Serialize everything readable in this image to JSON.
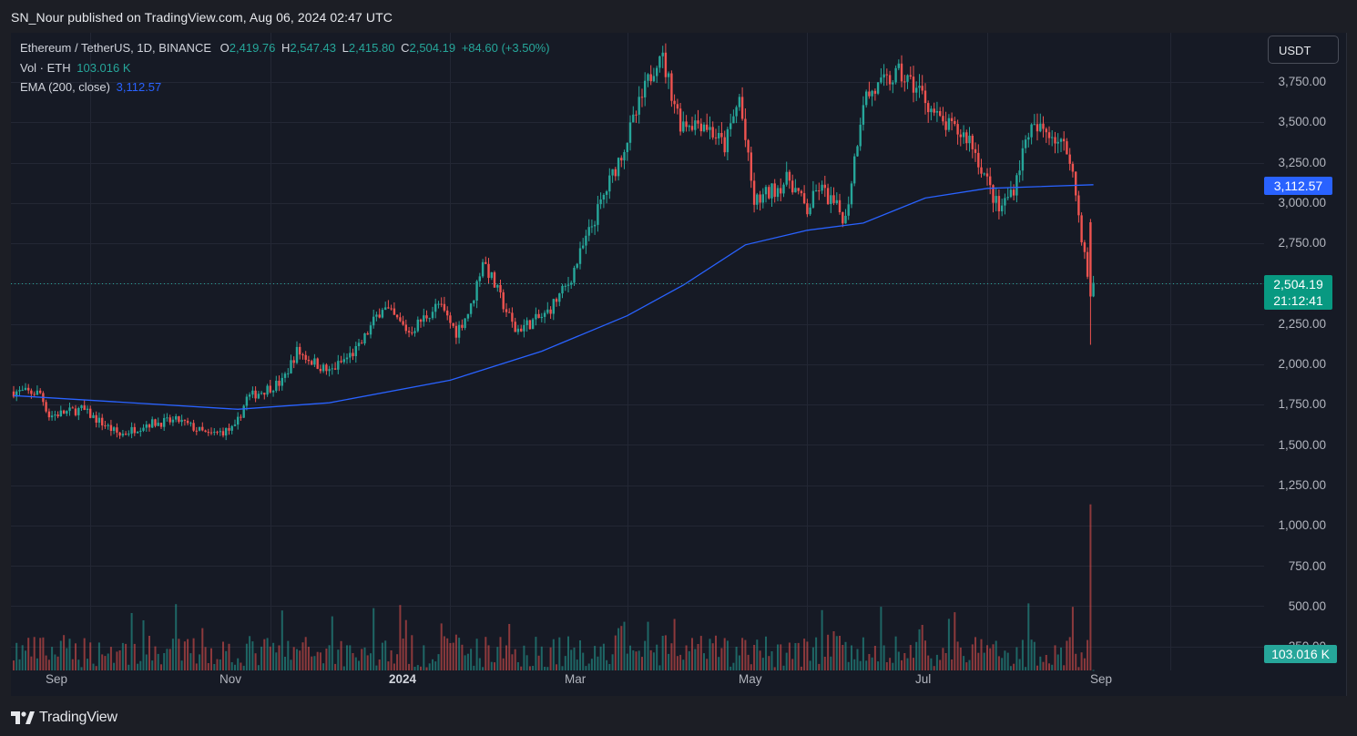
{
  "header": {
    "published_text": "SN_Nour published on TradingView.com, Aug 06, 2024 02:47 UTC"
  },
  "legend": {
    "symbol": "Ethereum / TetherUS, 1D, BINANCE",
    "o_label": "O",
    "o_value": "2,419.76",
    "h_label": "H",
    "h_value": "2,547.43",
    "l_label": "L",
    "l_value": "2,415.80",
    "c_label": "C",
    "c_value": "2,504.19",
    "change": "+84.60 (+3.50%)",
    "vol_label": "Vol · ETH",
    "vol_value": "103.016 K",
    "ema_label": "EMA (200, close)",
    "ema_value": "3,112.57"
  },
  "price_scale": {
    "unit": "USDT",
    "labels": [
      "3,750.00",
      "3,500.00",
      "3,250.00",
      "3,000.00",
      "2,750.00",
      "2,250.00",
      "2,000.00",
      "1,750.00",
      "1,500.00",
      "1,250.00",
      "1,000.00",
      "750.00",
      "500.00",
      "250.00"
    ],
    "ema_badge": "3,112.57",
    "price_badge": "2,504.19",
    "countdown": "21:12:41",
    "volume_badge": "103.016 K"
  },
  "time_scale": {
    "labels": [
      "Sep",
      "Nov",
      "2024",
      "Mar",
      "May",
      "Jul",
      "Sep"
    ]
  },
  "footer": {
    "brand": "TradingView"
  },
  "colors": {
    "up": "#26a69a",
    "down": "#ef5350",
    "ema": "#2962ff",
    "background": "#161a25"
  },
  "chart_data": {
    "type": "candlestick",
    "symbol": "ETHUSDT",
    "interval": "1D",
    "x_range": [
      "2023-08-06",
      "2024-10-01"
    ],
    "price_range": [
      1250,
      4000
    ],
    "last_candle": {
      "date": "2024-08-06",
      "open": 2419.76,
      "high": 2547.43,
      "low": 2415.8,
      "close": 2504.19
    },
    "close_series": [
      {
        "date": "2023-08-06",
        "close": 1830
      },
      {
        "date": "2023-08-15",
        "close": 1820
      },
      {
        "date": "2023-08-18",
        "close": 1680
      },
      {
        "date": "2023-08-29",
        "close": 1720
      },
      {
        "date": "2023-09-11",
        "close": 1560
      },
      {
        "date": "2023-09-20",
        "close": 1630
      },
      {
        "date": "2023-10-01",
        "close": 1650
      },
      {
        "date": "2023-10-11",
        "close": 1560
      },
      {
        "date": "2023-10-20",
        "close": 1600
      },
      {
        "date": "2023-10-24",
        "close": 1790
      },
      {
        "date": "2023-11-05",
        "close": 1890
      },
      {
        "date": "2023-11-10",
        "close": 2080
      },
      {
        "date": "2023-11-21",
        "close": 1950
      },
      {
        "date": "2023-12-01",
        "close": 2100
      },
      {
        "date": "2023-12-09",
        "close": 2360
      },
      {
        "date": "2023-12-18",
        "close": 2200
      },
      {
        "date": "2023-12-28",
        "close": 2370
      },
      {
        "date": "2024-01-03",
        "close": 2200
      },
      {
        "date": "2024-01-08",
        "close": 2350
      },
      {
        "date": "2024-01-12",
        "close": 2650
      },
      {
        "date": "2024-01-23",
        "close": 2210
      },
      {
        "date": "2024-02-02",
        "close": 2300
      },
      {
        "date": "2024-02-10",
        "close": 2500
      },
      {
        "date": "2024-02-20",
        "close": 2950
      },
      {
        "date": "2024-03-01",
        "close": 3400
      },
      {
        "date": "2024-03-12",
        "close": 3950
      },
      {
        "date": "2024-03-19",
        "close": 3500
      },
      {
        "date": "2024-03-27",
        "close": 3500
      },
      {
        "date": "2024-04-03",
        "close": 3350
      },
      {
        "date": "2024-04-08",
        "close": 3650
      },
      {
        "date": "2024-04-13",
        "close": 3000
      },
      {
        "date": "2024-04-25",
        "close": 3150
      },
      {
        "date": "2024-05-01",
        "close": 2950
      },
      {
        "date": "2024-05-05",
        "close": 3100
      },
      {
        "date": "2024-05-14",
        "close": 2900
      },
      {
        "date": "2024-05-20",
        "close": 3650
      },
      {
        "date": "2024-06-01",
        "close": 3800
      },
      {
        "date": "2024-06-08",
        "close": 3700
      },
      {
        "date": "2024-06-15",
        "close": 3500
      },
      {
        "date": "2024-06-25",
        "close": 3400
      },
      {
        "date": "2024-07-05",
        "close": 2950
      },
      {
        "date": "2024-07-10",
        "close": 3100
      },
      {
        "date": "2024-07-15",
        "close": 3450
      },
      {
        "date": "2024-07-22",
        "close": 3450
      },
      {
        "date": "2024-07-29",
        "close": 3300
      },
      {
        "date": "2024-08-05",
        "close": 2420
      },
      {
        "date": "2024-08-06",
        "close": 2504.19
      }
    ],
    "ema_200": [
      {
        "date": "2023-08-06",
        "value": 1805
      },
      {
        "date": "2023-10-21",
        "value": 1720
      },
      {
        "date": "2023-11-21",
        "value": 1760
      },
      {
        "date": "2024-01-01",
        "value": 1900
      },
      {
        "date": "2024-02-01",
        "value": 2080
      },
      {
        "date": "2024-03-01",
        "value": 2300
      },
      {
        "date": "2024-03-20",
        "value": 2490
      },
      {
        "date": "2024-04-10",
        "value": 2740
      },
      {
        "date": "2024-05-01",
        "value": 2830
      },
      {
        "date": "2024-05-20",
        "value": 2875
      },
      {
        "date": "2024-06-10",
        "value": 3030
      },
      {
        "date": "2024-07-01",
        "value": 3090
      },
      {
        "date": "2024-08-06",
        "value": 3112.57
      }
    ],
    "volume": {
      "last_value": "103.016 K",
      "spike_date": "2024-08-05",
      "spike_value": 1130,
      "typical_range": [
        100,
        400
      ]
    },
    "volume_scale_labels": [
      "1,000.00",
      "750.00",
      "500.00",
      "250.00"
    ],
    "grid": true
  }
}
